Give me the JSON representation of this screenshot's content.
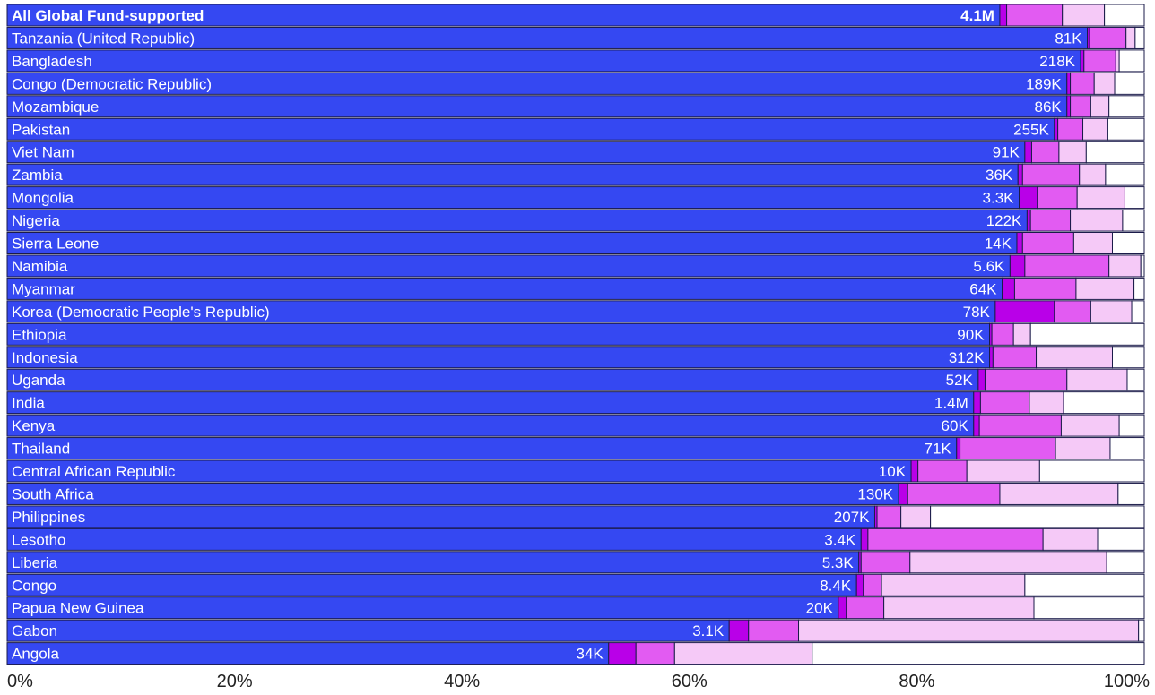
{
  "chart_data": {
    "type": "bar",
    "orientation": "horizontal",
    "stacked": true,
    "xlim": [
      0,
      100
    ],
    "x_ticks": [
      "0%",
      "20%",
      "40%",
      "60%",
      "80%",
      "100%"
    ],
    "grid": false,
    "legend": "none",
    "colors": [
      "#3548f2",
      "#b900e8",
      "#e25bf2",
      "#f5c9f7",
      "#ffffff"
    ],
    "categories": [
      "All Global Fund-supported",
      "Tanzania (United Republic)",
      "Bangladesh",
      "Congo (Democratic Republic)",
      "Mozambique",
      "Pakistan",
      "Viet Nam",
      "Zambia",
      "Mongolia",
      "Nigeria",
      "Sierra Leone",
      "Namibia",
      "Myanmar",
      "Korea (Democratic People's Republic)",
      "Ethiopia",
      "Indonesia",
      "Uganda",
      "India",
      "Kenya",
      "Thailand",
      "Central African Republic",
      "South Africa",
      "Philippines",
      "Lesotho",
      "Liberia",
      "Congo",
      "Papua New Guinea",
      "Gabon",
      "Angola"
    ],
    "bar_labels": [
      "4.1M",
      "81K",
      "218K",
      "189K",
      "86K",
      "255K",
      "91K",
      "36K",
      "3.3K",
      "122K",
      "14K",
      "5.6K",
      "64K",
      "78K",
      "90K",
      "312K",
      "52K",
      "1.4M",
      "60K",
      "71K",
      "10K",
      "130K",
      "207K",
      "3.4K",
      "5.3K",
      "8.4K",
      "20K",
      "3.1K",
      "34K"
    ],
    "segments": [
      [
        87.3,
        0.6,
        4.9,
        3.7,
        3.5
      ],
      [
        95.0,
        0.2,
        3.2,
        0.8,
        0.8
      ],
      [
        94.4,
        0.3,
        2.8,
        0.3,
        2.2
      ],
      [
        93.2,
        0.3,
        2.1,
        1.8,
        2.6
      ],
      [
        93.2,
        0.3,
        1.8,
        1.6,
        3.1
      ],
      [
        92.1,
        0.3,
        2.2,
        2.2,
        3.2
      ],
      [
        89.5,
        0.6,
        2.4,
        2.4,
        5.1
      ],
      [
        88.9,
        0.4,
        5.0,
        2.3,
        3.4
      ],
      [
        89.0,
        1.6,
        3.5,
        4.2,
        1.7
      ],
      [
        89.7,
        0.3,
        3.5,
        4.6,
        1.9
      ],
      [
        88.8,
        0.5,
        4.5,
        3.4,
        2.8
      ],
      [
        88.2,
        1.3,
        7.4,
        2.8,
        0.3
      ],
      [
        87.5,
        1.1,
        5.4,
        5.1,
        0.9
      ],
      [
        86.9,
        5.2,
        3.2,
        3.6,
        1.1
      ],
      [
        86.4,
        0.2,
        1.9,
        1.5,
        10.0
      ],
      [
        86.4,
        0.3,
        3.8,
        6.7,
        2.8
      ],
      [
        85.4,
        0.6,
        7.2,
        5.3,
        1.5
      ],
      [
        85.0,
        0.6,
        4.3,
        3.0,
        7.1
      ],
      [
        85.0,
        0.5,
        7.2,
        5.1,
        2.2
      ],
      [
        83.5,
        0.3,
        8.4,
        4.8,
        3.0
      ],
      [
        79.5,
        0.6,
        4.3,
        6.4,
        9.2
      ],
      [
        78.4,
        0.8,
        8.1,
        10.4,
        2.3
      ],
      [
        76.3,
        0.2,
        2.1,
        2.6,
        18.8
      ],
      [
        75.1,
        0.6,
        15.4,
        4.8,
        4.1
      ],
      [
        74.9,
        0.2,
        4.3,
        17.3,
        3.3
      ],
      [
        74.7,
        0.6,
        1.6,
        12.6,
        10.5
      ],
      [
        73.1,
        0.7,
        3.3,
        13.2,
        9.7
      ],
      [
        63.5,
        1.7,
        4.4,
        29.9,
        0.5
      ],
      [
        52.9,
        2.4,
        3.4,
        12.1,
        29.2
      ]
    ]
  }
}
